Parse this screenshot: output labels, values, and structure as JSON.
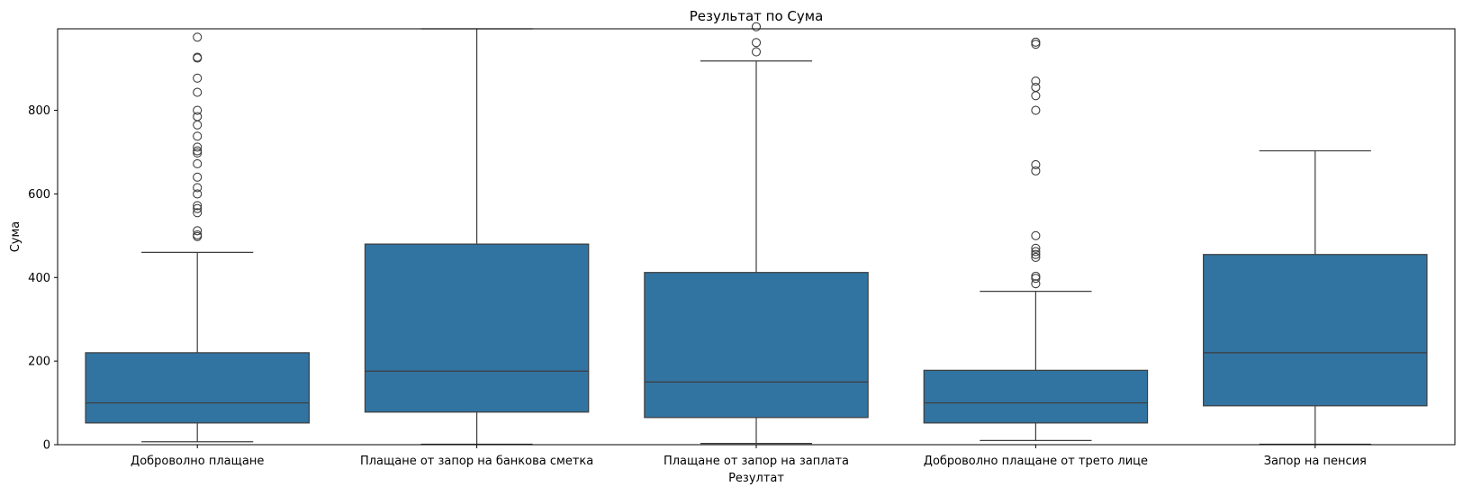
{
  "chart_data": {
    "type": "box",
    "title": "Результат по Сума",
    "xlabel": "Резултат",
    "ylabel": "Сума",
    "ylim": [
      0,
      995
    ],
    "yticks": [
      0,
      200,
      400,
      600,
      800
    ],
    "grid": false,
    "legend": "none",
    "box_color": "#3274a1",
    "line_color": "#3d3d3d",
    "categories": [
      "Доброволно плащане",
      "Плащане от запор на банкова сметка",
      "Плащане от запор на заплата",
      "Доброволно плащане от трето лице",
      "Запор на пенсия"
    ],
    "boxes": [
      {
        "whisker_low": 7,
        "q1": 52,
        "median": 100,
        "q3": 220,
        "whisker_high": 460,
        "outliers": [
          498,
          502,
          512,
          555,
          565,
          572,
          600,
          615,
          640,
          672,
          698,
          703,
          712,
          738,
          765,
          785,
          800,
          843,
          877,
          925,
          927,
          975
        ]
      },
      {
        "whisker_low": 1,
        "q1": 78,
        "median": 176,
        "q3": 480,
        "whisker_high": 995,
        "outliers": []
      },
      {
        "whisker_low": 3,
        "q1": 65,
        "median": 150,
        "q3": 412,
        "whisker_high": 918,
        "outliers": [
          940,
          962,
          1000
        ]
      },
      {
        "whisker_low": 10,
        "q1": 52,
        "median": 100,
        "q3": 178,
        "whisker_high": 367,
        "outliers": [
          385,
          398,
          403,
          448,
          455,
          462,
          470,
          500,
          655,
          670,
          800,
          835,
          855,
          870,
          958,
          963
        ]
      },
      {
        "whisker_low": 1,
        "q1": 93,
        "median": 220,
        "q3": 455,
        "whisker_high": 703,
        "outliers": []
      }
    ]
  }
}
